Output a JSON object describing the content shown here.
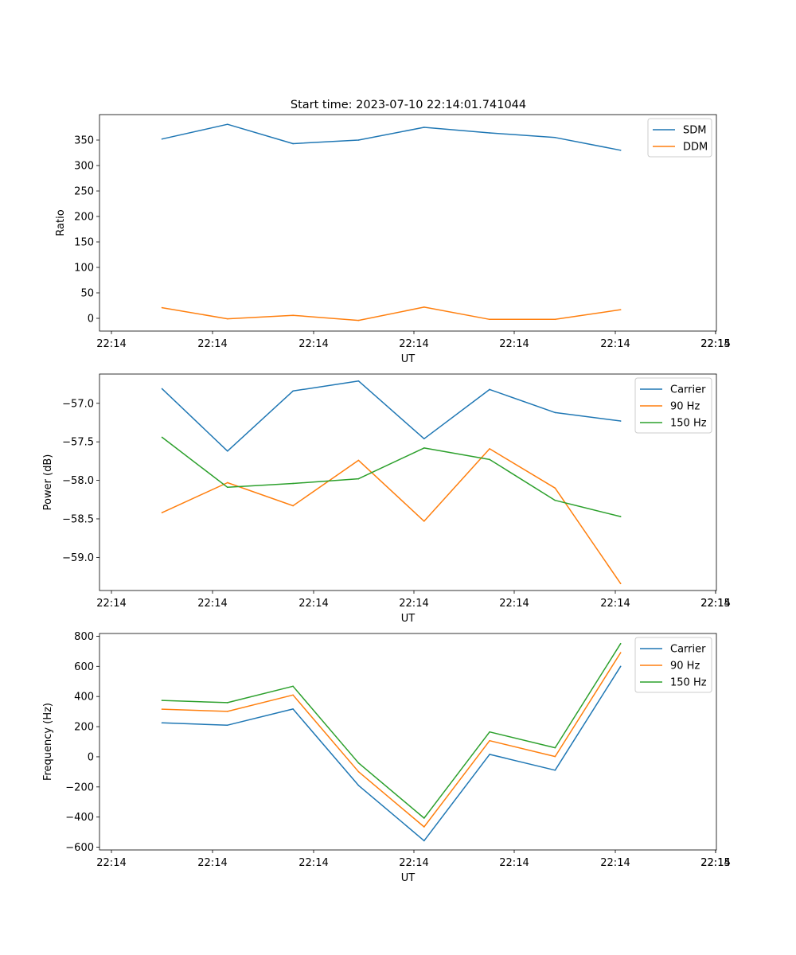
{
  "title": "Start time: 2023-07-10 22:14:01.741044",
  "colors": {
    "blue": "#1f77b4",
    "orange": "#ff7f0e",
    "green": "#2ca02c"
  },
  "chart_data": [
    {
      "type": "line",
      "title": "Start time: 2023-07-10 22:14:01.741044",
      "xlabel": "UT",
      "ylabel": "Ratio",
      "x_tick_labels": [
        "22:14",
        "22:14",
        "22:14",
        "22:14",
        "22:14",
        "22:14",
        "22:14",
        "22:15"
      ],
      "x": [
        0.5,
        1.15,
        1.8,
        2.45,
        3.1,
        3.75,
        4.4,
        5.05
      ],
      "xlim": [
        -0.12,
        6.0
      ],
      "ylim": [
        -25,
        400
      ],
      "yticks": [
        0,
        50,
        100,
        150,
        200,
        250,
        300,
        350
      ],
      "y_tick_labels": [
        "0",
        "50",
        "100",
        "150",
        "200",
        "250",
        "300",
        "350"
      ],
      "legend_position": "top-right",
      "series": [
        {
          "name": "SDM",
          "color": "#1f77b4",
          "values": [
            352,
            381,
            343,
            350,
            375,
            364,
            355,
            330
          ]
        },
        {
          "name": "DDM",
          "color": "#ff7f0e",
          "values": [
            21,
            -1,
            6,
            -4,
            22,
            -2,
            -2,
            17
          ]
        }
      ]
    },
    {
      "type": "line",
      "title": "",
      "xlabel": "UT",
      "ylabel": "Power (dB)",
      "x_tick_labels": [
        "22:14",
        "22:14",
        "22:14",
        "22:14",
        "22:14",
        "22:14",
        "22:14",
        "22:15"
      ],
      "x": [
        0.5,
        1.15,
        1.8,
        2.45,
        3.1,
        3.75,
        4.4,
        5.05
      ],
      "xlim": [
        -0.12,
        6.0
      ],
      "ylim": [
        -59.43,
        -56.62
      ],
      "yticks": [
        -59.0,
        -58.5,
        -58.0,
        -57.5,
        -57.0
      ],
      "y_tick_labels": [
        "−59.0",
        "−58.5",
        "−58.0",
        "−57.5",
        "−57.0"
      ],
      "legend_position": "top-right",
      "series": [
        {
          "name": "Carrier",
          "color": "#1f77b4",
          "values": [
            -56.81,
            -57.62,
            -56.84,
            -56.71,
            -57.46,
            -56.82,
            -57.12,
            -57.23
          ]
        },
        {
          "name": "90 Hz",
          "color": "#ff7f0e",
          "values": [
            -58.42,
            -58.03,
            -58.33,
            -57.74,
            -58.53,
            -57.59,
            -58.1,
            -59.34
          ]
        },
        {
          "name": "150 Hz",
          "color": "#2ca02c",
          "values": [
            -57.44,
            -58.09,
            -58.04,
            -57.98,
            -57.58,
            -57.73,
            -58.26,
            -58.47
          ]
        }
      ]
    },
    {
      "type": "line",
      "title": "",
      "xlabel": "UT",
      "ylabel": "Frequency (Hz)",
      "x_tick_labels": [
        "22:14",
        "22:14",
        "22:14",
        "22:14",
        "22:14",
        "22:14",
        "22:14",
        "22:15"
      ],
      "x": [
        0.5,
        1.15,
        1.8,
        2.45,
        3.1,
        3.75,
        4.4,
        5.05
      ],
      "xlim": [
        -0.12,
        6.0
      ],
      "ylim": [
        -618,
        818
      ],
      "yticks": [
        -600,
        -400,
        -200,
        0,
        200,
        400,
        600,
        800
      ],
      "y_tick_labels": [
        "−600",
        "−400",
        "−200",
        "0",
        "200",
        "400",
        "600",
        "800"
      ],
      "legend_position": "top-right",
      "series": [
        {
          "name": "Carrier",
          "color": "#1f77b4",
          "values": [
            225,
            210,
            317,
            -190,
            -557,
            16,
            -89,
            600
          ]
        },
        {
          "name": "90 Hz",
          "color": "#ff7f0e",
          "values": [
            316,
            301,
            410,
            -99,
            -465,
            107,
            2,
            691
          ]
        },
        {
          "name": "150 Hz",
          "color": "#2ca02c",
          "values": [
            374,
            359,
            468,
            -41,
            -407,
            165,
            60,
            751
          ]
        }
      ]
    }
  ]
}
